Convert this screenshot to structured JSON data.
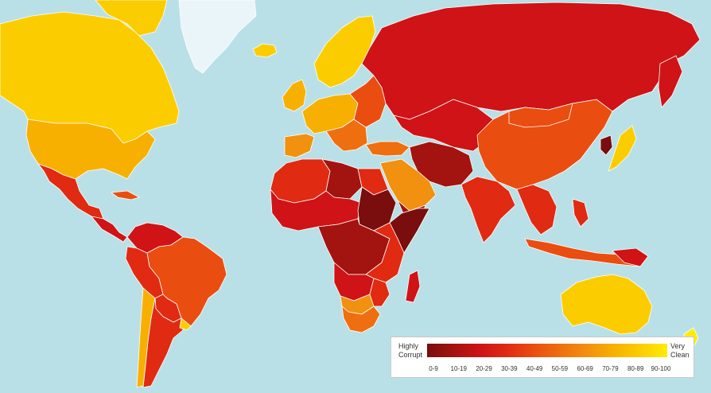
{
  "legend": {
    "low_label_line1": "Highly",
    "low_label_line2": "Corrupt",
    "high_label_line1": "Very",
    "high_label_line2": "Clean",
    "ranges": [
      "0-9",
      "10-19",
      "20-29",
      "30-39",
      "40-49",
      "50-59",
      "60-69",
      "70-79",
      "80-89",
      "90-100"
    ],
    "colors": [
      "#7a0d0d",
      "#a3130f",
      "#cf1316",
      "#e02a12",
      "#ea4d10",
      "#ef6e0f",
      "#f29010",
      "#f8b000",
      "#fbcd00",
      "#ffec00"
    ]
  },
  "map": {
    "ocean_color": "#b9e0e6",
    "no_data_color": "#e9f5f9"
  }
}
